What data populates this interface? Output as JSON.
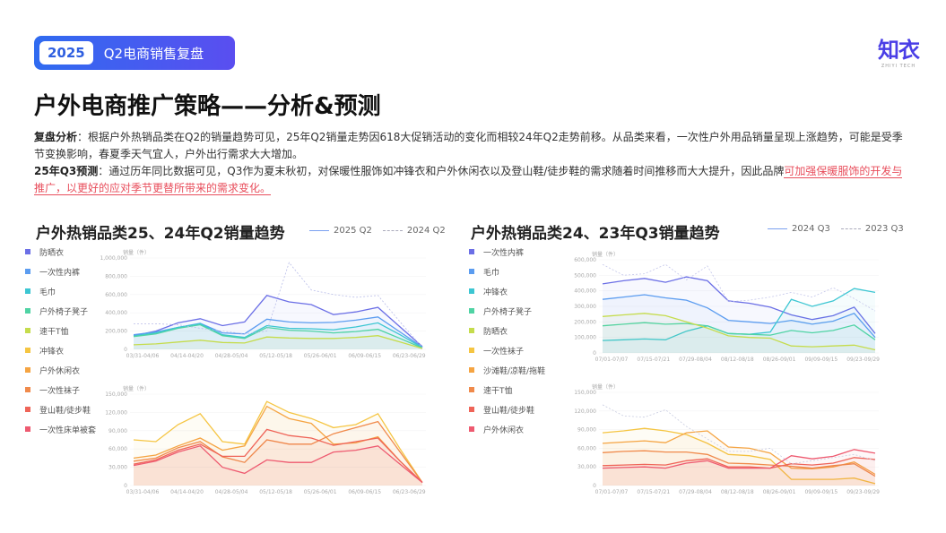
{
  "header": {
    "year": "2025",
    "title": "Q2电商销售复盘",
    "logo": "知衣",
    "logo_sub": "ZHIYI TECH"
  },
  "page_title": "户外电商推广策略——分析&预测",
  "analysis": {
    "label": "复盘分析",
    "text": "：根据户外热销品类在Q2的销量趋势可见，25年Q2销量走势因618大促销活动的变化而相较24年Q2走势前移。从品类来看，一次性户外用品销量呈现上涨趋势，可能是受季节变换影响，春夏季天气宜人，户外出行需求大大增加。"
  },
  "forecast": {
    "label": "25年Q3预测",
    "text": "：通过历年同比数据可见，Q3作为夏末秋初，对保暖性服饰如冲锋衣和户外休闲衣以及登山鞋/徒步鞋的需求随着时间推移而大大提升，因此品牌",
    "highlight": "可加强保暖服饰的开发与推广，以更好的应对季节更替所带来的需求变化。"
  },
  "left": {
    "title": "户外热销品类25、24年Q2销量趋势",
    "legend_solid": "2025 Q2",
    "legend_dashed": "2024 Q2",
    "legend": [
      {
        "label": "防晒衣",
        "color": "#6b6fe6"
      },
      {
        "label": "一次性内裤",
        "color": "#5b9cf0"
      },
      {
        "label": "毛巾",
        "color": "#3cc6d2"
      },
      {
        "label": "户外椅子凳子",
        "color": "#4fd3a4"
      },
      {
        "label": "速干T恤",
        "color": "#c5dc4c"
      },
      {
        "label": "冲锋衣",
        "color": "#f5c542"
      },
      {
        "label": "户外休闲衣",
        "color": "#f5a442"
      },
      {
        "label": "一次性袜子",
        "color": "#f08a4b"
      },
      {
        "label": "登山鞋/徒步鞋",
        "color": "#ef6458"
      },
      {
        "label": "一次性床单被套",
        "color": "#ee5a70"
      }
    ]
  },
  "right": {
    "title": "户外热销品类24、23年Q3销量趋势",
    "legend_solid": "2024 Q3",
    "legend_dashed": "2023 Q3",
    "legend": [
      {
        "label": "一次性内裤",
        "color": "#6b6fe6"
      },
      {
        "label": "毛巾",
        "color": "#5b9cf0"
      },
      {
        "label": "冲锋衣",
        "color": "#3cc6d2"
      },
      {
        "label": "户外椅子凳子",
        "color": "#4fd3a4"
      },
      {
        "label": "防晒衣",
        "color": "#c5dc4c"
      },
      {
        "label": "一次性袜子",
        "color": "#f5c542"
      },
      {
        "label": "沙滩鞋/凉鞋/拖鞋",
        "color": "#f5a442"
      },
      {
        "label": "速干T恤",
        "color": "#f08a4b"
      },
      {
        "label": "登山鞋/徒步鞋",
        "color": "#ef6458"
      },
      {
        "label": "户外休闲衣",
        "color": "#ee5a70"
      }
    ]
  },
  "chart_data": [
    {
      "type": "line",
      "ylabel": "销量（件）",
      "ylim": [
        0,
        1000000
      ],
      "yticks": [
        "0",
        "200,000",
        "400,000",
        "600,000",
        "800,000",
        "1,000,000"
      ],
      "xticks": [
        "03/31-04/06",
        "04/14-04/20",
        "04/28-05/04",
        "05/12-05/18",
        "05/26-06/01",
        "06/09-06/15",
        "06/23-06/29"
      ],
      "series": [
        {
          "name": "防晒衣",
          "color": "#6b6fe6",
          "values": [
            150000,
            200000,
            290000,
            335000,
            260000,
            300000,
            590000,
            520000,
            490000,
            380000,
            410000,
            460000,
            245000,
            30000
          ]
        },
        {
          "name": "一次性内裤",
          "color": "#5b9cf0",
          "values": [
            160000,
            190000,
            240000,
            285000,
            180000,
            170000,
            330000,
            300000,
            290000,
            295000,
            320000,
            355000,
            190000,
            25000
          ]
        },
        {
          "name": "毛巾",
          "color": "#3cc6d2",
          "values": [
            145000,
            180000,
            240000,
            280000,
            160000,
            130000,
            260000,
            230000,
            225000,
            215000,
            245000,
            290000,
            160000,
            20000
          ]
        },
        {
          "name": "户外椅子凳子",
          "color": "#4fd3a4",
          "values": [
            140000,
            170000,
            230000,
            270000,
            150000,
            120000,
            240000,
            210000,
            200000,
            180000,
            195000,
            220000,
            120000,
            15000
          ]
        },
        {
          "name": "速干T恤",
          "color": "#c5dc4c",
          "values": [
            50000,
            60000,
            80000,
            100000,
            75000,
            70000,
            135000,
            125000,
            120000,
            120000,
            130000,
            150000,
            80000,
            10000
          ]
        },
        {
          "name": "防晒衣",
          "dashed": true,
          "color": "#b8bce8",
          "values": [
            280000,
            280000,
            270000,
            230000,
            200000,
            170000,
            200000,
            950000,
            650000,
            600000,
            570000,
            590000,
            300000,
            20000
          ]
        }
      ]
    },
    {
      "type": "line",
      "ylabel": "销量（件）",
      "ylim": [
        0,
        150000
      ],
      "yticks": [
        "0",
        "30,000",
        "60,000",
        "90,000",
        "120,000",
        "150,000"
      ],
      "xticks": [
        "03/31-04/06",
        "04/14-04/20",
        "04/28-05/04",
        "05/12-05/18",
        "05/26-06/01",
        "06/09-06/15",
        "06/23-06/29"
      ],
      "series": [
        {
          "name": "冲锋衣",
          "color": "#f5c542",
          "values": [
            75000,
            72000,
            100000,
            118000,
            72000,
            68000,
            138000,
            120000,
            110000,
            95000,
            100000,
            118000,
            60000,
            5000
          ]
        },
        {
          "name": "户外休闲衣",
          "color": "#f5a442",
          "values": [
            45000,
            50000,
            65000,
            78000,
            58000,
            65000,
            130000,
            110000,
            102000,
            68000,
            70000,
            80000,
            40000,
            5000
          ]
        },
        {
          "name": "一次性袜子",
          "color": "#f08a4b",
          "values": [
            40000,
            45000,
            62000,
            72000,
            47000,
            38000,
            75000,
            68000,
            68000,
            85000,
            95000,
            105000,
            55000,
            5000
          ]
        },
        {
          "name": "登山鞋/徒步鞋",
          "color": "#ef6458",
          "values": [
            35000,
            42000,
            58000,
            68000,
            48000,
            48000,
            92000,
            82000,
            78000,
            66000,
            72000,
            78000,
            40000,
            5000
          ]
        },
        {
          "name": "一次性床单被套",
          "color": "#ee5a70",
          "values": [
            33000,
            40000,
            55000,
            65000,
            30000,
            20000,
            42000,
            38000,
            38000,
            55000,
            58000,
            65000,
            35000,
            5000
          ]
        }
      ]
    },
    {
      "type": "line",
      "ylabel": "销量（件）",
      "ylim": [
        0,
        600000
      ],
      "yticks": [
        "0",
        "100,000",
        "200,000",
        "300,000",
        "400,000",
        "500,000",
        "600,000"
      ],
      "xticks": [
        "07/01-07/07",
        "07/15-07/21",
        "07/29-08/04",
        "08/12-08/18",
        "08/26-09/01",
        "09/09-09/15",
        "09/23-09/29"
      ],
      "series": [
        {
          "name": "一次性内裤",
          "color": "#6b6fe6",
          "values": [
            445000,
            465000,
            480000,
            455000,
            490000,
            465000,
            335000,
            320000,
            295000,
            245000,
            215000,
            240000,
            295000,
            125000
          ]
        },
        {
          "name": "毛巾",
          "color": "#5b9cf0",
          "values": [
            345000,
            360000,
            375000,
            355000,
            340000,
            290000,
            210000,
            200000,
            190000,
            210000,
            185000,
            205000,
            255000,
            100000
          ]
        },
        {
          "name": "冲锋衣",
          "color": "#3cc6d2",
          "values": [
            80000,
            85000,
            90000,
            85000,
            140000,
            175000,
            125000,
            120000,
            135000,
            345000,
            300000,
            335000,
            415000,
            390000
          ]
        },
        {
          "name": "户外椅子凳子",
          "color": "#4fd3a4",
          "values": [
            175000,
            185000,
            195000,
            185000,
            190000,
            175000,
            125000,
            120000,
            115000,
            145000,
            130000,
            145000,
            180000,
            85000
          ]
        },
        {
          "name": "防晒衣",
          "color": "#c5dc4c",
          "values": [
            235000,
            245000,
            255000,
            240000,
            200000,
            160000,
            110000,
            100000,
            95000,
            45000,
            40000,
            45000,
            50000,
            20000
          ]
        },
        {
          "name": "一次性内裤",
          "dashed": true,
          "color": "#c4c6ea",
          "values": [
            570000,
            500000,
            510000,
            570000,
            470000,
            560000,
            330000,
            340000,
            360000,
            390000,
            360000,
            420000,
            350000,
            270000
          ]
        }
      ]
    },
    {
      "type": "line",
      "ylabel": "销量（件）",
      "ylim": [
        0,
        150000
      ],
      "yticks": [
        "0",
        "30,000",
        "60,000",
        "90,000",
        "120,000",
        "150,000"
      ],
      "xticks": [
        "07/01-07/07",
        "07/15-07/21",
        "07/29-08/04",
        "08/12-08/18",
        "08/26-09/01",
        "09/09-09/15",
        "09/23-09/29"
      ],
      "series": [
        {
          "name": "一次性袜子",
          "color": "#f5c542",
          "values": [
            85000,
            88000,
            92000,
            88000,
            82000,
            68000,
            50000,
            48000,
            42000,
            10000,
            10000,
            10000,
            12000,
            3000
          ]
        },
        {
          "name": "沙滩鞋/凉鞋/拖鞋",
          "color": "#f5a442",
          "values": [
            68000,
            70000,
            72000,
            69000,
            85000,
            88000,
            62000,
            60000,
            52000,
            28000,
            27000,
            30000,
            38000,
            18000
          ]
        },
        {
          "name": "速干T恤",
          "color": "#f08a4b",
          "values": [
            53000,
            55000,
            56000,
            54000,
            54000,
            50000,
            36000,
            35000,
            33000,
            31000,
            28000,
            32000,
            35000,
            15000
          ]
        },
        {
          "name": "登山鞋/徒步鞋",
          "color": "#ef6458",
          "values": [
            32000,
            33000,
            34000,
            33000,
            40000,
            43000,
            30000,
            30000,
            28000,
            35000,
            33000,
            36000,
            45000,
            42000
          ]
        },
        {
          "name": "户外休闲衣",
          "color": "#ee5a70",
          "values": [
            28000,
            29000,
            30000,
            28000,
            36000,
            40000,
            28000,
            28000,
            28000,
            48000,
            43000,
            47000,
            58000,
            52000
          ]
        },
        {
          "name": "一次性袜子",
          "dashed": true,
          "color": "#c8cce0",
          "values": [
            130000,
            112000,
            110000,
            122000,
            95000,
            75000,
            55000,
            55000,
            60000,
            35000,
            40000,
            45000,
            50000,
            40000
          ]
        }
      ]
    }
  ]
}
